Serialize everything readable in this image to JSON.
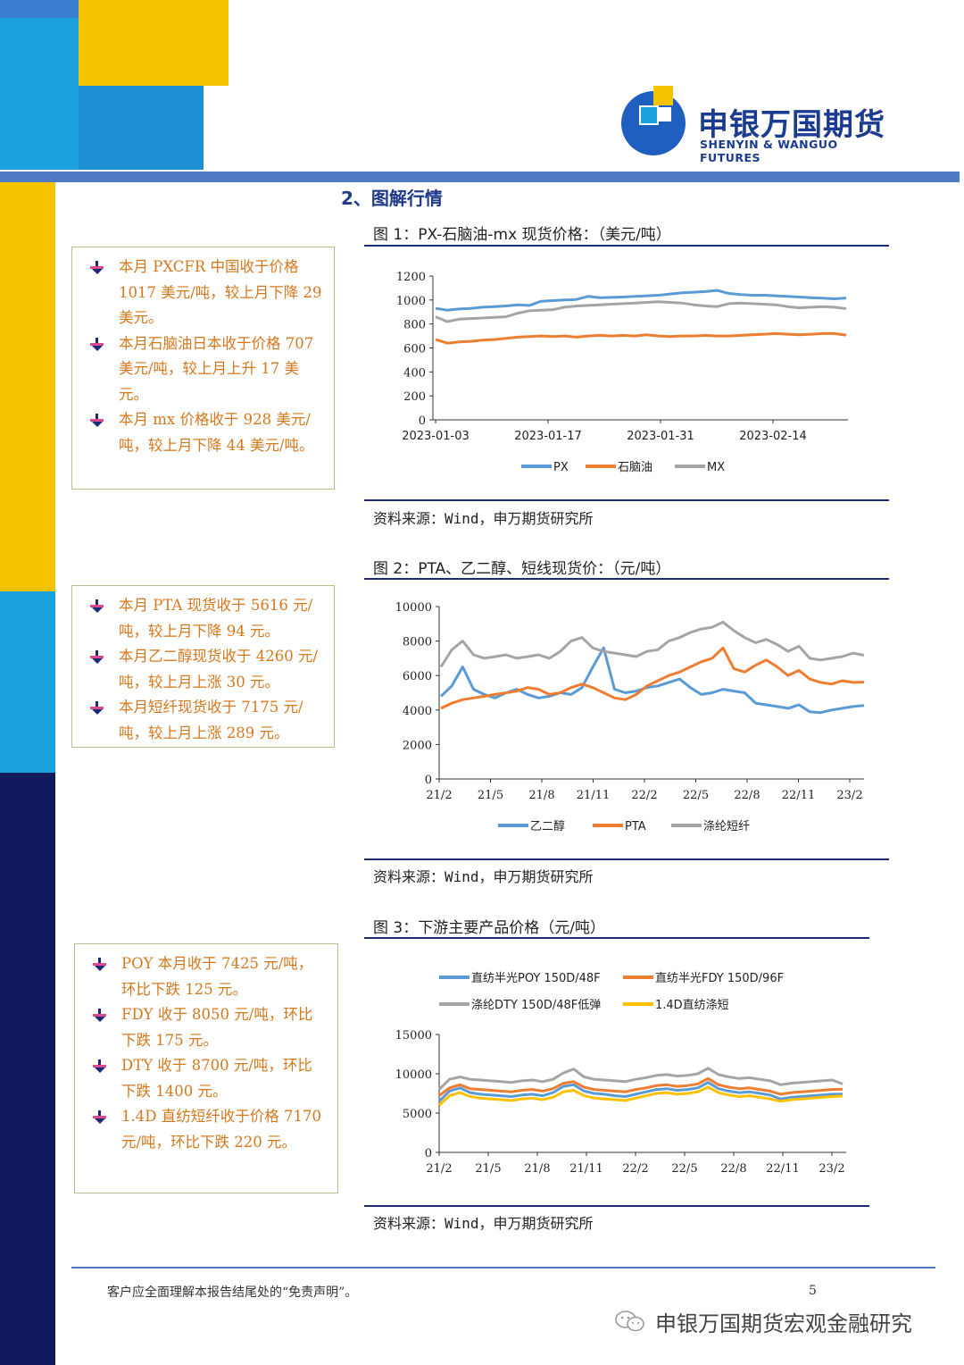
{
  "logo": {
    "name_cn": "申银万国期货",
    "name_en": "SHENYIN & WANGUO FUTURES"
  },
  "section_title": "2、图解行情",
  "colors": {
    "accent_navy": "#1b2a7a",
    "note_text": "#d4781e",
    "blue": "#5b9bd5",
    "orange": "#ed7d31",
    "gray": "#a5a5a5",
    "yellow": "#ffc000"
  },
  "figures": [
    {
      "title": "图 1：PX-石脑油-mx 现货价格：（美元/吨）",
      "source": "资料来源：Wind，申万期货研究所"
    },
    {
      "title": "图 2：PTA、乙二醇、短线现货价：（元/吨）",
      "source": "资料来源：Wind，申万期货研究所"
    },
    {
      "title": "图 3：下游主要产品价格（元/吨）",
      "source": "资料来源：Wind，申万期货研究所"
    }
  ],
  "notes": [
    {
      "items": [
        "本月 PXCFR 中国收于价格 1017 美元/吨，较上月下降 29 美元。",
        "本月石脑油日本收于价格 707 美元/吨，较上月上升 17 美元。",
        "本月 mx 价格收于 928 美元/吨，较上月下降 44 美元/吨。"
      ]
    },
    {
      "items": [
        "本月 PTA 现货收于 5616 元/吨，较上月下降 94 元。",
        "本月乙二醇现货收于 4260 元/吨，较上月上涨 30 元。",
        "本月短纤现货收于 7175 元/吨，较上月上涨 289 元。"
      ]
    },
    {
      "items": [
        "POY 本月收于 7425 元/吨，环比下跌 125 元。",
        "FDY 收于 8050 元/吨，环比下跌 175 元。",
        "DTY 收于 8700 元/吨，环比下跌 1400 元。",
        "1.4D 直纺短纤收于价格 7170 元/吨，环比下跌 220 元。"
      ]
    }
  ],
  "footer": {
    "disclaimer": "客户应全面理解本报告结尾处的“免责声明”。",
    "page": "5",
    "wechat": "申银万国期货宏观金融研究"
  },
  "chart_data": [
    {
      "type": "line",
      "ylim": [
        0,
        1200
      ],
      "yticks": [
        "0",
        "200",
        "400",
        "600",
        "800",
        "1000",
        "1200"
      ],
      "xticks": [
        "2023-01-03",
        "2023-01-17",
        "2023-01-31",
        "2023-02-14"
      ],
      "x_range": [
        "2023-01-03",
        "2023-02-28"
      ],
      "series": [
        {
          "name": "PX",
          "color": "#5b9bd5",
          "values": [
            930,
            915,
            925,
            930,
            940,
            945,
            950,
            960,
            955,
            990,
            995,
            1000,
            1005,
            1030,
            1020,
            1022,
            1025,
            1030,
            1035,
            1040,
            1050,
            1060,
            1065,
            1070,
            1080,
            1055,
            1045,
            1040,
            1040,
            1035,
            1030,
            1025,
            1020,
            1015,
            1010,
            1017
          ]
        },
        {
          "name": "石脑油",
          "color": "#ed7d31",
          "values": [
            670,
            640,
            650,
            655,
            665,
            670,
            680,
            690,
            695,
            700,
            695,
            700,
            690,
            700,
            705,
            700,
            705,
            700,
            710,
            700,
            695,
            700,
            700,
            705,
            700,
            700,
            705,
            710,
            715,
            720,
            715,
            710,
            715,
            720,
            720,
            707
          ]
        },
        {
          "name": "MX",
          "color": "#a5a5a5",
          "values": [
            860,
            820,
            840,
            845,
            850,
            855,
            860,
            890,
            910,
            915,
            920,
            940,
            950,
            955,
            960,
            965,
            970,
            975,
            980,
            985,
            980,
            975,
            960,
            950,
            945,
            970,
            975,
            970,
            965,
            960,
            945,
            935,
            940,
            945,
            940,
            928
          ]
        }
      ]
    },
    {
      "type": "line",
      "ylim": [
        0,
        10000
      ],
      "yticks": [
        "0",
        "2000",
        "4000",
        "6000",
        "8000",
        "10000"
      ],
      "xticks": [
        "21/2",
        "21/5",
        "21/8",
        "21/11",
        "22/2",
        "22/5",
        "22/8",
        "22/11",
        "23/2"
      ],
      "x_range": [
        "21/2",
        "23/2"
      ],
      "series": [
        {
          "name": "乙二醇",
          "color": "#5b9bd5",
          "values": [
            4800,
            5400,
            6500,
            5200,
            4900,
            4700,
            5000,
            5200,
            4900,
            4700,
            4800,
            5000,
            4900,
            5300,
            6500,
            7600,
            5200,
            5000,
            5100,
            5300,
            5400,
            5600,
            5800,
            5300,
            4900,
            5000,
            5200,
            5100,
            5000,
            4400,
            4300,
            4200,
            4100,
            4300,
            3900,
            3850,
            4000,
            4100,
            4200,
            4260
          ]
        },
        {
          "name": "PTA",
          "color": "#ed7d31",
          "values": [
            4100,
            4400,
            4600,
            4700,
            4800,
            4900,
            5000,
            5100,
            5300,
            5200,
            4900,
            5000,
            5300,
            5500,
            5300,
            5000,
            4700,
            4600,
            4900,
            5400,
            5700,
            6000,
            6200,
            6500,
            6800,
            7000,
            7600,
            6400,
            6200,
            6600,
            6900,
            6500,
            6000,
            6300,
            5800,
            5600,
            5500,
            5700,
            5600,
            5616
          ]
        },
        {
          "name": "涤纶短纤",
          "color": "#a5a5a5",
          "values": [
            6500,
            7500,
            8000,
            7200,
            7000,
            7100,
            7200,
            7000,
            7100,
            7200,
            7000,
            7400,
            8000,
            8200,
            7600,
            7400,
            7300,
            7200,
            7100,
            7400,
            7500,
            8000,
            8200,
            8500,
            8700,
            8800,
            9100,
            8600,
            8200,
            7900,
            8100,
            7800,
            7400,
            7700,
            7000,
            6900,
            7000,
            7100,
            7300,
            7175
          ]
        }
      ]
    },
    {
      "type": "line",
      "ylim": [
        0,
        15000
      ],
      "yticks": [
        "0",
        "5000",
        "10000",
        "15000"
      ],
      "xticks": [
        "21/2",
        "21/5",
        "21/8",
        "21/11",
        "22/2",
        "22/5",
        "22/8",
        "22/11",
        "23/2"
      ],
      "x_range": [
        "21/2",
        "23/2"
      ],
      "series": [
        {
          "name": "直纺半光POY 150D/48F",
          "color": "#5b9bd5",
          "values": [
            6500,
            7800,
            8200,
            7600,
            7400,
            7300,
            7200,
            7100,
            7300,
            7400,
            7200,
            7600,
            8400,
            8600,
            7800,
            7500,
            7400,
            7200,
            7100,
            7400,
            7700,
            8000,
            8100,
            7900,
            8000,
            8200,
            8900,
            8100,
            7800,
            7600,
            7700,
            7500,
            7300,
            6800,
            7000,
            7100,
            7200,
            7300,
            7400,
            7425
          ]
        },
        {
          "name": "直纺半光FDY 150D/96F",
          "color": "#ed7d31",
          "values": [
            7200,
            8200,
            8600,
            8100,
            8000,
            7900,
            7800,
            7700,
            7900,
            8000,
            7800,
            8100,
            8800,
            9000,
            8300,
            8000,
            7900,
            7800,
            7700,
            8000,
            8200,
            8500,
            8600,
            8400,
            8500,
            8700,
            9400,
            8600,
            8300,
            8100,
            8200,
            8000,
            7800,
            7400,
            7600,
            7700,
            7800,
            7900,
            8000,
            8050
          ]
        },
        {
          "name": "涤纶DTY 150D/48F低弹",
          "color": "#a5a5a5",
          "values": [
            8000,
            9300,
            9600,
            9300,
            9200,
            9100,
            9000,
            8900,
            9100,
            9200,
            9000,
            9300,
            10100,
            10600,
            9600,
            9300,
            9200,
            9100,
            9000,
            9300,
            9500,
            9800,
            9900,
            9700,
            9800,
            10000,
            10700,
            9900,
            9600,
            9400,
            9500,
            9300,
            9100,
            8600,
            8800,
            8900,
            9000,
            9100,
            9200,
            8700
          ]
        },
        {
          "name": "1.4D直纺涤短",
          "color": "#ffc000",
          "values": [
            6000,
            7200,
            7600,
            7100,
            6900,
            6800,
            6700,
            6600,
            6800,
            6900,
            6700,
            7000,
            7700,
            7900,
            7200,
            6900,
            6800,
            6700,
            6600,
            6900,
            7200,
            7500,
            7600,
            7400,
            7500,
            7700,
            8300,
            7600,
            7300,
            7100,
            7200,
            7000,
            6800,
            6500,
            6700,
            6800,
            6900,
            7000,
            7100,
            7170
          ]
        }
      ]
    }
  ]
}
